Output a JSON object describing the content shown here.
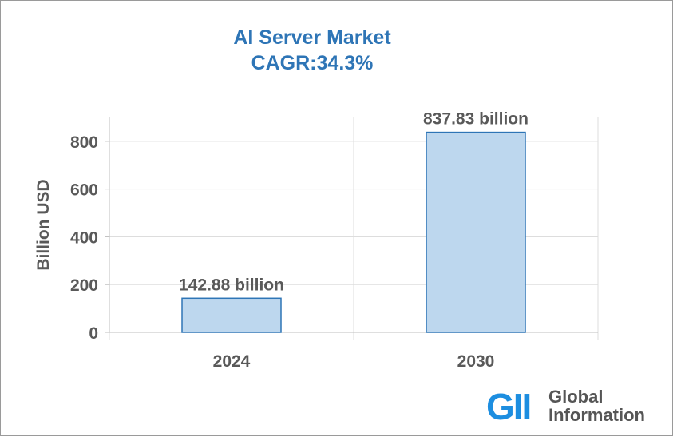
{
  "chart_data": {
    "type": "bar",
    "title_line1": "AI Server Market",
    "title_line2": "CAGR:34.3%",
    "categories": [
      "2024",
      "2030"
    ],
    "values": [
      142.88,
      837.83
    ],
    "data_labels": [
      "142.88 billion",
      "837.83 billion"
    ],
    "ylabel": "Billion USD",
    "xlabel": "",
    "ylim": [
      0,
      900
    ],
    "yticks": [
      0,
      200,
      400,
      600,
      800
    ],
    "grid": true,
    "bar_fill": "#bdd7ee",
    "bar_stroke": "#2e75b6",
    "title_color": "#2e75b6"
  },
  "logo": {
    "mark": "GII",
    "line1": "Global",
    "line2": "Information",
    "color": "#1d8ee0"
  }
}
